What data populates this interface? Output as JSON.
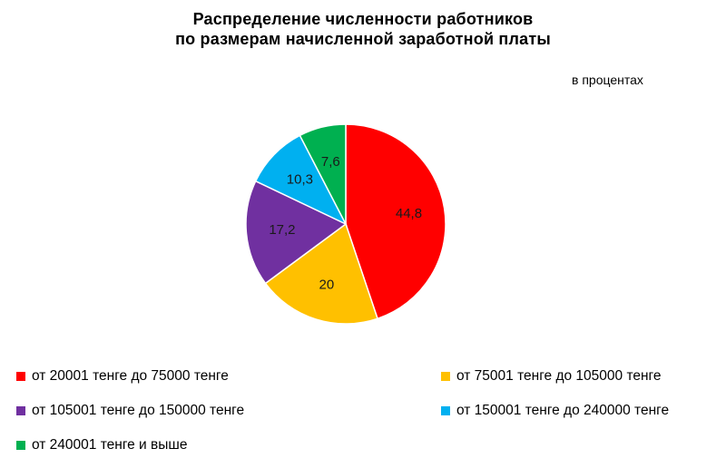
{
  "chart_data": {
    "type": "pie",
    "title": [
      "Распределение  численности  работников",
      "по размерам начисленной заработной  платы"
    ],
    "units_note": "в процентах",
    "categories": [
      "от 20001 тенге до  75000 тенге",
      "от 75001 тенге до  105000 тенге",
      "от 105001 тенге до 150000 тенге",
      "от 150001 тенге до 240000 тенге",
      "от 240001 тенге и выше"
    ],
    "values": [
      44.8,
      20,
      17.2,
      10.3,
      7.6
    ],
    "value_labels": [
      "44,8",
      "20",
      "17,2",
      "10,3",
      "7,6"
    ],
    "colors": [
      "#ff0000",
      "#ffc000",
      "#7030a0",
      "#00b0f0",
      "#00b050"
    ],
    "legend_position": "bottom"
  }
}
